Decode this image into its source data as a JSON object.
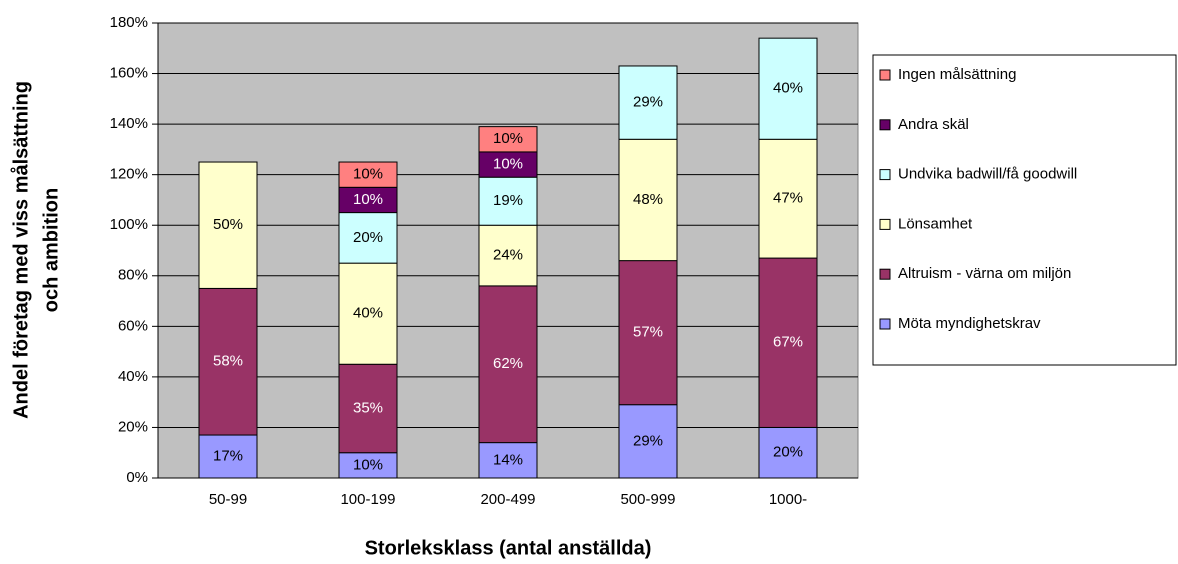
{
  "chart_data": {
    "type": "stacked_bar",
    "x_label": "Storleksklass (antal anställda)",
    "y_label": [
      "Andel företag med viss målsättning",
      "och ambition"
    ],
    "categories": [
      "50-99",
      "100-199",
      "200-499",
      "500-999",
      "1000-"
    ],
    "series": [
      {
        "name": "Möta myndighetskrav",
        "color": "#9999ff",
        "label_color": "#000000",
        "values": [
          17,
          10,
          14,
          29,
          20
        ],
        "value_labels": [
          "17%",
          "10%",
          "14%",
          "29%",
          "20%"
        ]
      },
      {
        "name": "Altruism - värna om miljön",
        "color": "#993366",
        "label_color": "#ffffff",
        "values": [
          58,
          35,
          62,
          57,
          67
        ],
        "value_labels": [
          "58%",
          "35%",
          "62%",
          "57%",
          "67%"
        ]
      },
      {
        "name": "Lönsamhet",
        "color": "#ffffcc",
        "label_color": "#000000",
        "values": [
          50,
          40,
          24,
          48,
          47
        ],
        "value_labels": [
          "50%",
          "40%",
          "24%",
          "48%",
          "47%"
        ]
      },
      {
        "name": "Undvika badwill/få goodwill",
        "color": "#ccffff",
        "label_color": "#000000",
        "values": [
          null,
          20,
          19,
          29,
          40
        ],
        "value_labels": [
          null,
          "20%",
          "19%",
          "29%",
          "40%"
        ]
      },
      {
        "name": "Andra skäl",
        "color": "#660066",
        "label_color": "#ffffff",
        "values": [
          null,
          10,
          10,
          null,
          null
        ],
        "value_labels": [
          null,
          "10%",
          "10%",
          null,
          null
        ]
      },
      {
        "name": "Ingen målsättning",
        "color": "#ff8080",
        "label_color": "#000000",
        "values": [
          null,
          10,
          10,
          null,
          null
        ],
        "value_labels": [
          null,
          "10%",
          "10%",
          null,
          null
        ]
      }
    ],
    "ylim": [
      0,
      180
    ],
    "yticks": [
      {
        "value": 0,
        "label": "0%"
      },
      {
        "value": 20,
        "label": "20%"
      },
      {
        "value": 40,
        "label": "40%"
      },
      {
        "value": 60,
        "label": "60%"
      },
      {
        "value": 80,
        "label": "80%"
      },
      {
        "value": 100,
        "label": "100%"
      },
      {
        "value": 120,
        "label": "120%"
      },
      {
        "value": 140,
        "label": "140%"
      },
      {
        "value": 160,
        "label": "160%"
      },
      {
        "value": 180,
        "label": "180%"
      }
    ],
    "grid": true,
    "plot_background": "#c0c0c0",
    "legend": "right"
  }
}
